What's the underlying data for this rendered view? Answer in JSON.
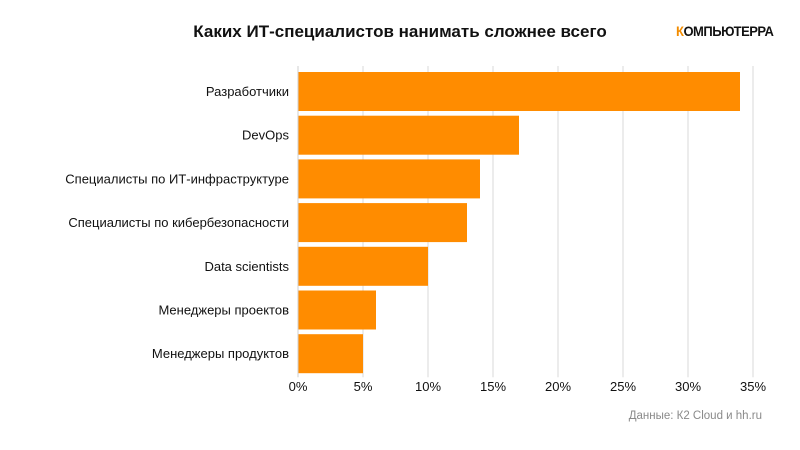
{
  "logo": {
    "first_letter": "К",
    "rest": "ОМПЬЮТЕРРА"
  },
  "source": "Данные: К2 Cloud и hh.ru",
  "chart_data": {
    "type": "bar",
    "orientation": "horizontal",
    "title": "Каких ИТ-специалистов нанимать сложнее всего",
    "xlabel": "",
    "ylabel": "",
    "categories": [
      "Разработчики",
      "DevOps",
      "Специалисты по ИТ-инфраструктуре",
      "Специалисты по кибербезопасности",
      "Data scientists",
      "Менеджеры проектов",
      "Менеджеры продуктов"
    ],
    "values": [
      34,
      17,
      14,
      13,
      10,
      6,
      5
    ],
    "unit": "%",
    "xlim": [
      0,
      35
    ],
    "ticks": [
      0,
      5,
      10,
      15,
      20,
      25,
      30,
      35
    ],
    "tick_labels": [
      "0%",
      "5%",
      "10%",
      "15%",
      "20%",
      "25%",
      "30%",
      "35%"
    ],
    "grid": "vertical",
    "legend": "none",
    "bar_color": "#ff8c00",
    "grid_color": "#d9d9d9"
  }
}
